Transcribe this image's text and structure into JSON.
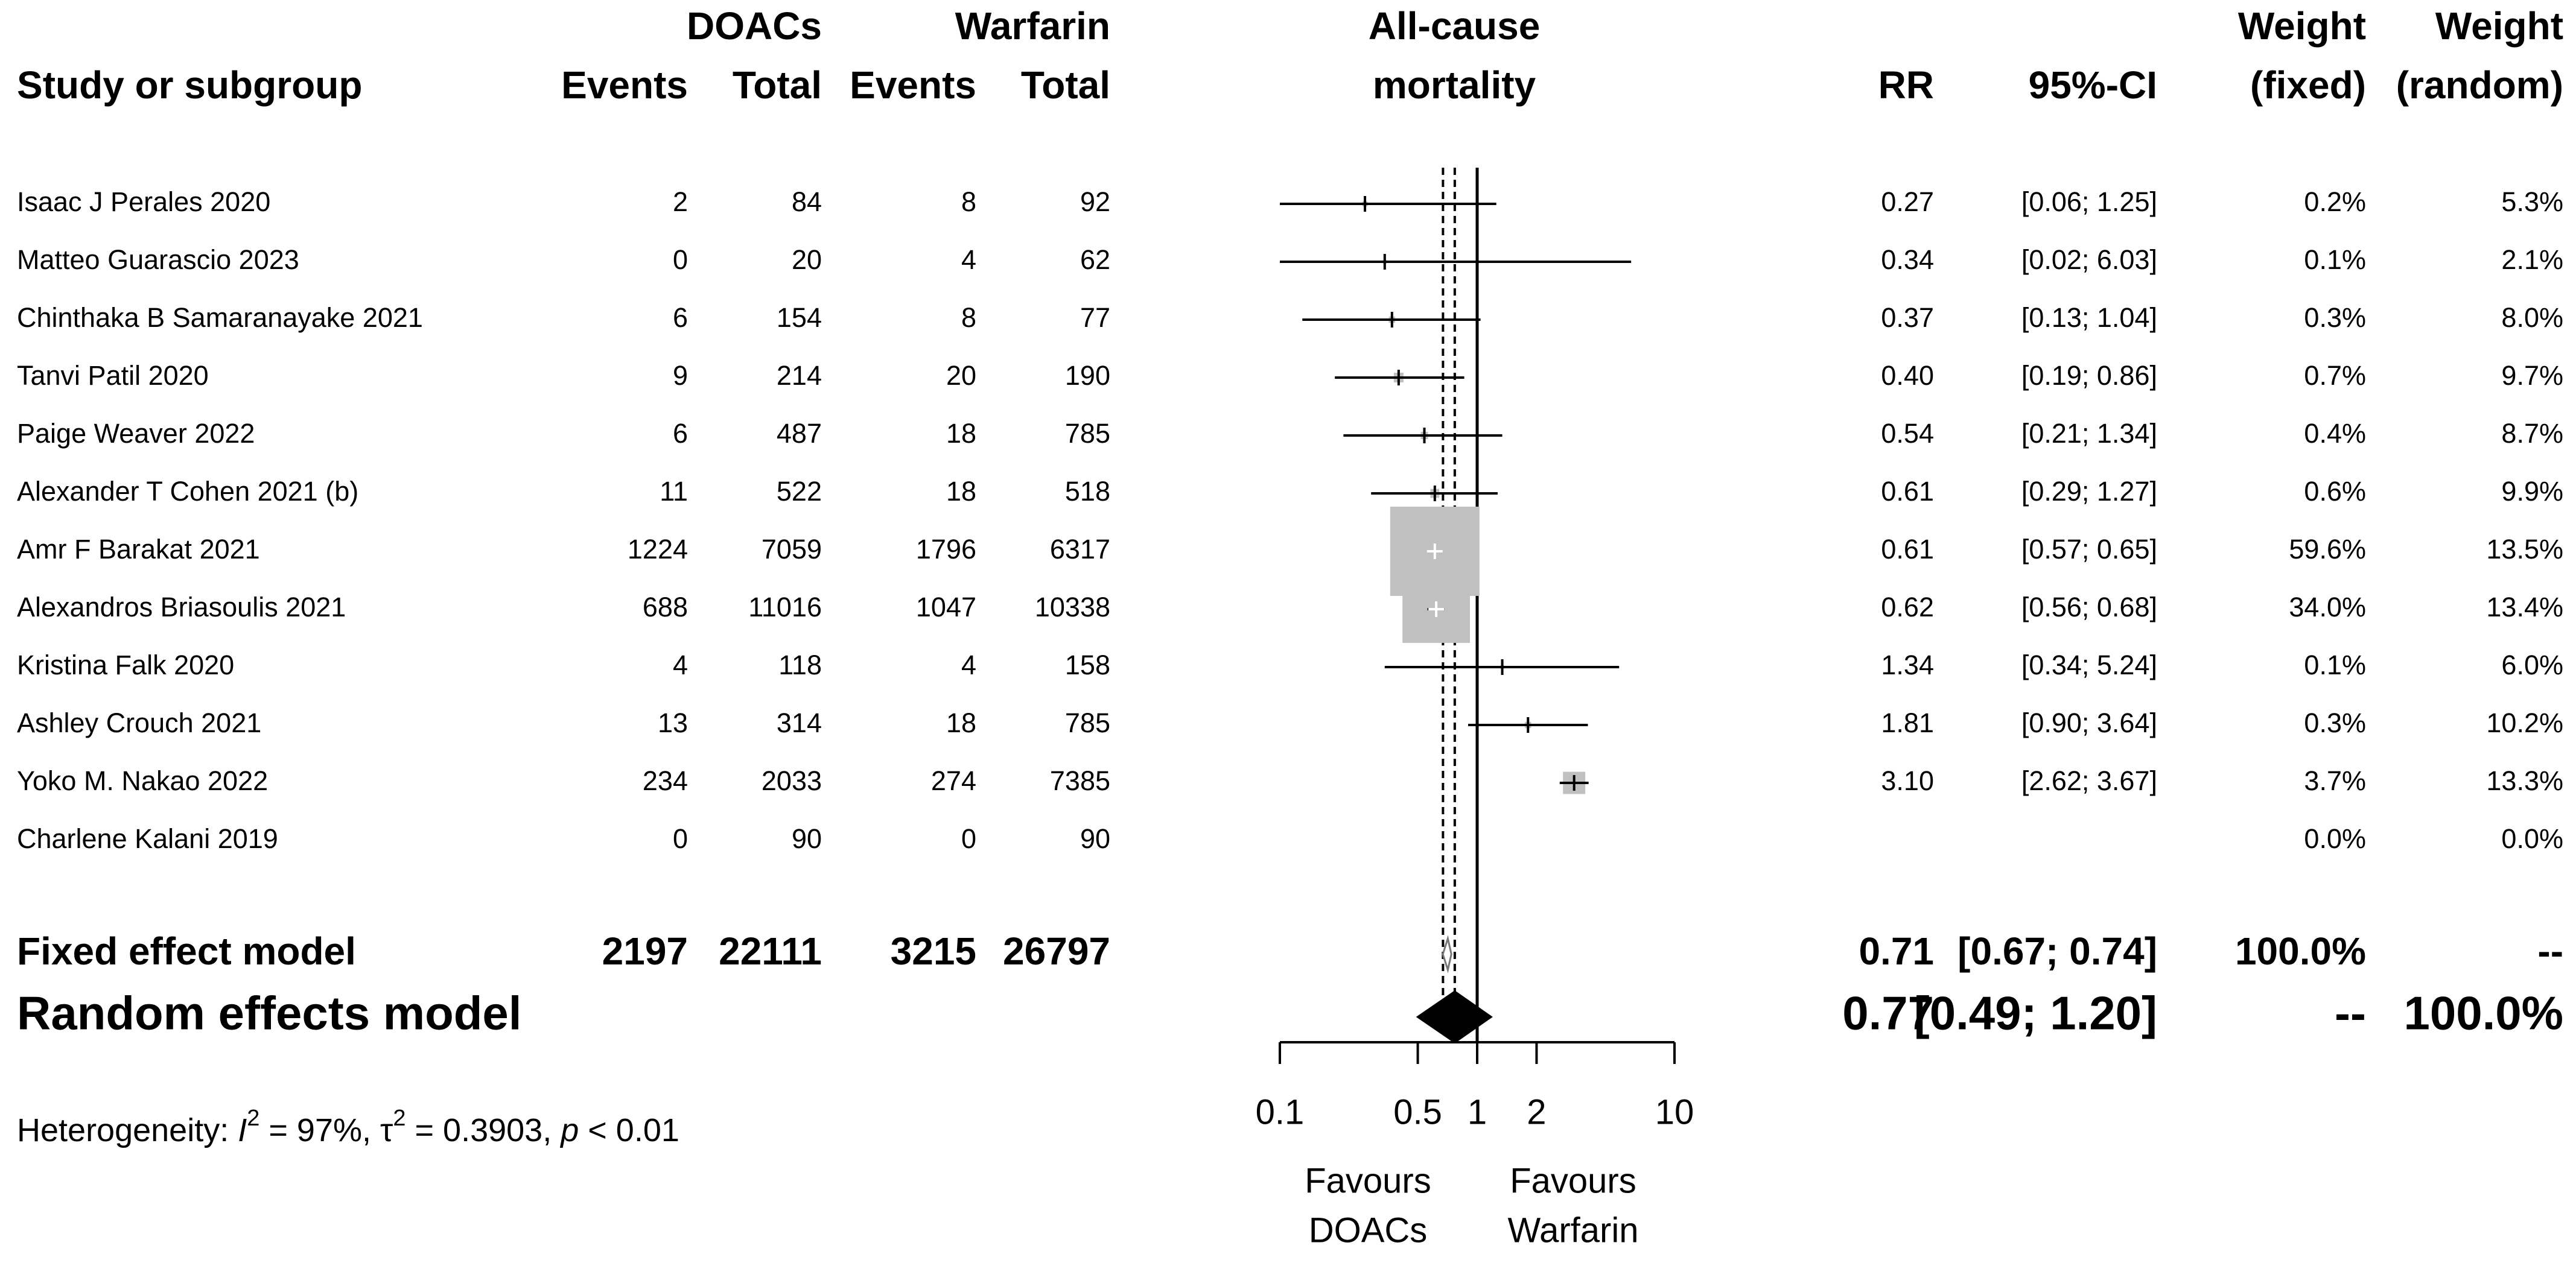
{
  "header": {
    "study": "Study or subgroup",
    "group1": "DOACs",
    "group2": "Warfarin",
    "events": "Events",
    "total": "Total",
    "plot_title_line1": "All-cause",
    "plot_title_line2": "mortality",
    "rr": "RR",
    "ci": "95%-CI",
    "weight": "Weight",
    "fixed": "(fixed)",
    "random": "(random)"
  },
  "chart_data": {
    "type": "forest",
    "title": "All-cause mortality",
    "scale": "log",
    "xlim": [
      0.1,
      10
    ],
    "ticks": [
      {
        "value": 0.1,
        "label": "0.1"
      },
      {
        "value": 0.5,
        "label": "0.5"
      },
      {
        "value": 1,
        "label": "1"
      },
      {
        "value": 2,
        "label": "2"
      },
      {
        "value": 10,
        "label": "10"
      }
    ],
    "studies": [
      {
        "name": "Isaac J Perales 2020",
        "e1": "2",
        "n1": "84",
        "e2": "8",
        "n2": "92",
        "rr": 0.27,
        "lo": 0.06,
        "hi": 1.25,
        "rr_text": "0.27",
        "ci_text": "[0.06; 1.25]",
        "w_fixed": "0.2%",
        "w_random": "5.3%",
        "wf": 0.2
      },
      {
        "name": "Matteo Guarascio 2023",
        "e1": "0",
        "n1": "20",
        "e2": "4",
        "n2": "62",
        "rr": 0.34,
        "lo": 0.02,
        "hi": 6.03,
        "rr_text": "0.34",
        "ci_text": "[0.02; 6.03]",
        "w_fixed": "0.1%",
        "w_random": "2.1%",
        "wf": 0.1
      },
      {
        "name": "Chinthaka B Samaranayake 2021",
        "e1": "6",
        "n1": "154",
        "e2": "8",
        "n2": "77",
        "rr": 0.37,
        "lo": 0.13,
        "hi": 1.04,
        "rr_text": "0.37",
        "ci_text": "[0.13; 1.04]",
        "w_fixed": "0.3%",
        "w_random": "8.0%",
        "wf": 0.3
      },
      {
        "name": "Tanvi Patil 2020",
        "e1": "9",
        "n1": "214",
        "e2": "20",
        "n2": "190",
        "rr": 0.4,
        "lo": 0.19,
        "hi": 0.86,
        "rr_text": "0.40",
        "ci_text": "[0.19; 0.86]",
        "w_fixed": "0.7%",
        "w_random": "9.7%",
        "wf": 0.7
      },
      {
        "name": "Paige Weaver 2022",
        "e1": "6",
        "n1": "487",
        "e2": "18",
        "n2": "785",
        "rr": 0.54,
        "lo": 0.21,
        "hi": 1.34,
        "rr_text": "0.54",
        "ci_text": "[0.21; 1.34]",
        "w_fixed": "0.4%",
        "w_random": "8.7%",
        "wf": 0.4
      },
      {
        "name": "Alexander T Cohen 2021 (b)",
        "e1": "11",
        "n1": "522",
        "e2": "18",
        "n2": "518",
        "rr": 0.61,
        "lo": 0.29,
        "hi": 1.27,
        "rr_text": "0.61",
        "ci_text": "[0.29; 1.27]",
        "w_fixed": "0.6%",
        "w_random": "9.9%",
        "wf": 0.6
      },
      {
        "name": "Amr F Barakat 2021",
        "e1": "1224",
        "n1": "7059",
        "e2": "1796",
        "n2": "6317",
        "rr": 0.61,
        "lo": 0.57,
        "hi": 0.65,
        "rr_text": "0.61",
        "ci_text": "[0.57; 0.65]",
        "w_fixed": "59.6%",
        "w_random": "13.5%",
        "wf": 59.6
      },
      {
        "name": "Alexandros Briasoulis 2021",
        "e1": "688",
        "n1": "11016",
        "e2": "1047",
        "n2": "10338",
        "rr": 0.62,
        "lo": 0.56,
        "hi": 0.68,
        "rr_text": "0.62",
        "ci_text": "[0.56; 0.68]",
        "w_fixed": "34.0%",
        "w_random": "13.4%",
        "wf": 34.0
      },
      {
        "name": "Kristina Falk 2020",
        "e1": "4",
        "n1": "118",
        "e2": "4",
        "n2": "158",
        "rr": 1.34,
        "lo": 0.34,
        "hi": 5.24,
        "rr_text": "1.34",
        "ci_text": "[0.34; 5.24]",
        "w_fixed": "0.1%",
        "w_random": "6.0%",
        "wf": 0.1
      },
      {
        "name": "Ashley Crouch 2021",
        "e1": "13",
        "n1": "314",
        "e2": "18",
        "n2": "785",
        "rr": 1.81,
        "lo": 0.9,
        "hi": 3.64,
        "rr_text": "1.81",
        "ci_text": "[0.90; 3.64]",
        "w_fixed": "0.3%",
        "w_random": "10.2%",
        "wf": 0.3
      },
      {
        "name": "Yoko M. Nakao 2022",
        "e1": "234",
        "n1": "2033",
        "e2": "274",
        "n2": "7385",
        "rr": 3.1,
        "lo": 2.62,
        "hi": 3.67,
        "rr_text": "3.10",
        "ci_text": "[2.62; 3.67]",
        "w_fixed": "3.7%",
        "w_random": "13.3%",
        "wf": 3.7
      },
      {
        "name": "Charlene Kalani 2019",
        "e1": "0",
        "n1": "90",
        "e2": "0",
        "n2": "90",
        "rr": null,
        "lo": null,
        "hi": null,
        "rr_text": "",
        "ci_text": "",
        "w_fixed": "0.0%",
        "w_random": "0.0%",
        "wf": 0
      }
    ],
    "fixed": {
      "name": "Fixed effect model",
      "e1": "2197",
      "n1": "22111",
      "e2": "3215",
      "n2": "26797",
      "rr": 0.71,
      "lo": 0.67,
      "hi": 0.74,
      "rr_text": "0.71",
      "ci_text": "[0.67; 0.74]",
      "w_fixed": "100.0%",
      "w_random": "--"
    },
    "random": {
      "name": "Random effects model",
      "rr": 0.77,
      "lo": 0.49,
      "hi": 1.2,
      "rr_text": "0.77",
      "ci_text": "[0.49; 1.20]",
      "w_fixed": "--",
      "w_random": "100.0%"
    },
    "heterogeneity": {
      "prefix": "Heterogeneity: ",
      "i2_symbol": "I",
      "i2_value": " = 97%, ",
      "tau2_symbol": "τ",
      "tau2_value": " = 0.3903, ",
      "p_symbol": "p",
      "p_value": " < 0.01"
    },
    "favours_left": [
      "Favours",
      "DOACs"
    ],
    "favours_right": [
      "Favours",
      "Warfarin"
    ]
  }
}
